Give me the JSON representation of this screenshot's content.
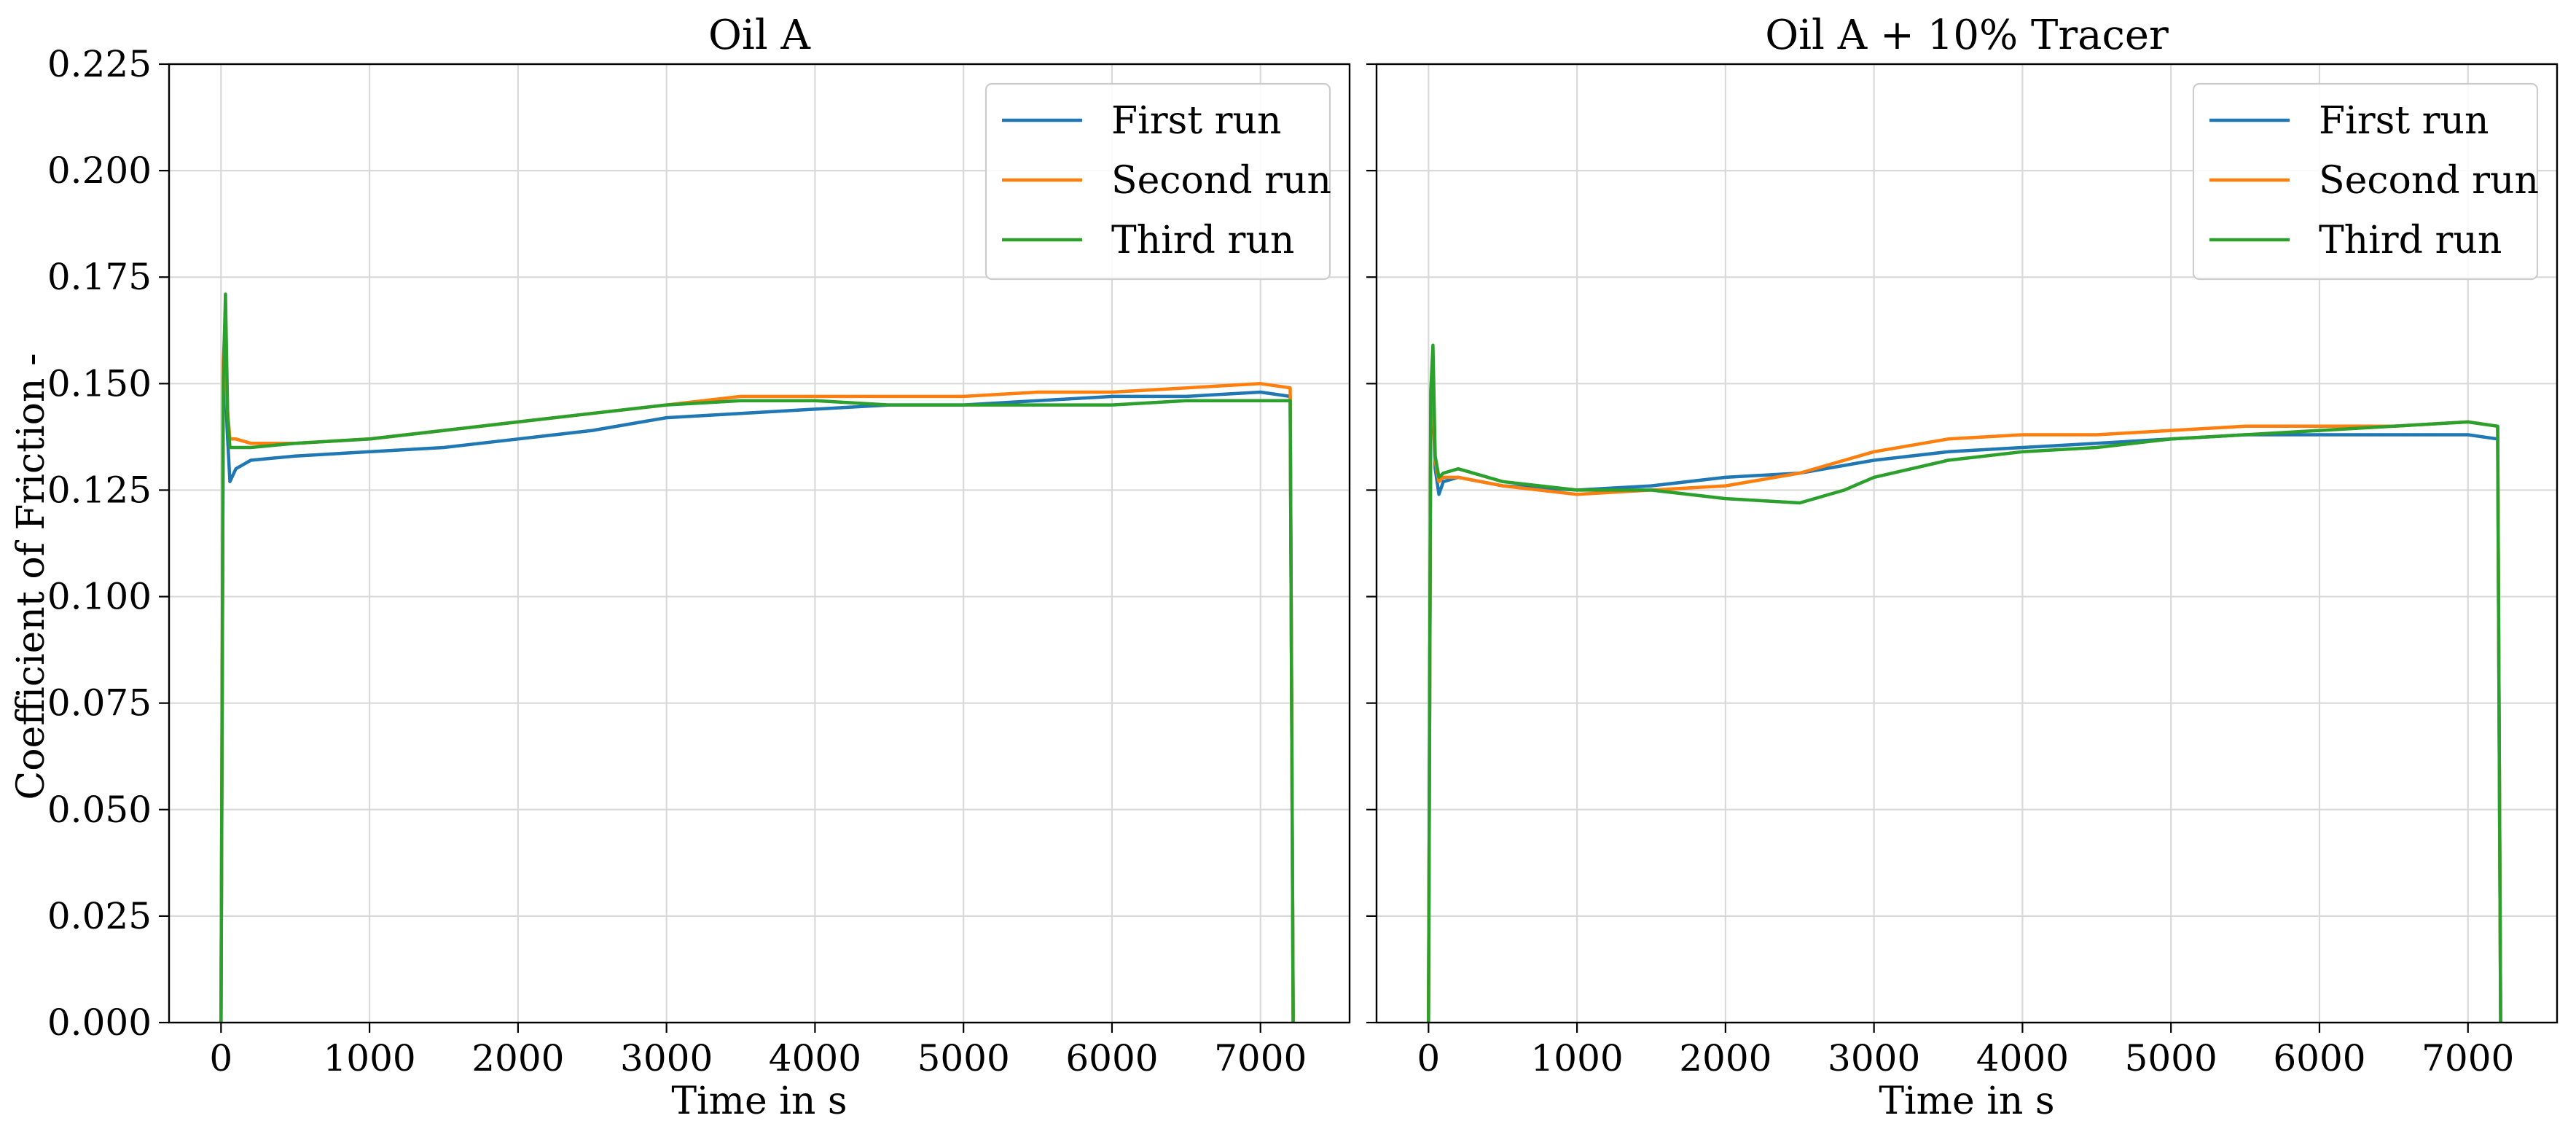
{
  "figure": {
    "ylabel": "Coefficient of Friction -",
    "colors": {
      "first": "#1f77b4",
      "second": "#ff7f0e",
      "third": "#2ca02c"
    }
  },
  "chart_data": [
    {
      "type": "line",
      "title": "Oil A",
      "xlabel": "Time in s",
      "ylabel": "Coefficient of Friction -",
      "xlim": [
        -350,
        7600
      ],
      "ylim": [
        0.0,
        0.225
      ],
      "xticks": [
        0,
        1000,
        2000,
        3000,
        4000,
        5000,
        6000,
        7000
      ],
      "yticks": [
        0.0,
        0.025,
        0.05,
        0.075,
        0.1,
        0.125,
        0.15,
        0.175,
        0.2,
        0.225
      ],
      "grid": true,
      "legend_position": "top-right",
      "series": [
        {
          "name": "First run",
          "color": "#1f77b4",
          "x": [
            0,
            15,
            25,
            40,
            60,
            100,
            200,
            500,
            1000,
            1500,
            2000,
            2500,
            3000,
            3500,
            4000,
            4500,
            5000,
            5500,
            6000,
            6500,
            7000,
            7200,
            7220
          ],
          "y": [
            0.0,
            0.145,
            0.158,
            0.14,
            0.127,
            0.13,
            0.132,
            0.133,
            0.134,
            0.135,
            0.137,
            0.139,
            0.142,
            0.143,
            0.144,
            0.145,
            0.145,
            0.146,
            0.147,
            0.147,
            0.148,
            0.147,
            0.0
          ]
        },
        {
          "name": "Second run",
          "color": "#ff7f0e",
          "x": [
            0,
            15,
            25,
            40,
            60,
            100,
            200,
            500,
            1000,
            1500,
            2000,
            2500,
            3000,
            3500,
            4000,
            4500,
            5000,
            5500,
            6000,
            6500,
            7000,
            7200,
            7220
          ],
          "y": [
            0.0,
            0.155,
            0.163,
            0.145,
            0.137,
            0.137,
            0.136,
            0.136,
            0.137,
            0.139,
            0.141,
            0.143,
            0.145,
            0.147,
            0.147,
            0.147,
            0.147,
            0.148,
            0.148,
            0.149,
            0.15,
            0.149,
            0.0
          ]
        },
        {
          "name": "Third run",
          "color": "#2ca02c",
          "x": [
            0,
            15,
            30,
            45,
            60,
            100,
            200,
            500,
            1000,
            1500,
            2000,
            2500,
            3000,
            3500,
            4000,
            4500,
            5000,
            5500,
            6000,
            6500,
            7000,
            7200,
            7220
          ],
          "y": [
            0.0,
            0.15,
            0.171,
            0.142,
            0.135,
            0.135,
            0.135,
            0.136,
            0.137,
            0.139,
            0.141,
            0.143,
            0.145,
            0.146,
            0.146,
            0.145,
            0.145,
            0.145,
            0.145,
            0.146,
            0.146,
            0.146,
            0.0
          ]
        }
      ]
    },
    {
      "type": "line",
      "title": "Oil A + 10% Tracer",
      "xlabel": "Time in s",
      "ylabel": "",
      "xlim": [
        -350,
        7600
      ],
      "ylim": [
        0.0,
        0.225
      ],
      "xticks": [
        0,
        1000,
        2000,
        3000,
        4000,
        5000,
        6000,
        7000
      ],
      "yticks": [
        0.0,
        0.025,
        0.05,
        0.075,
        0.1,
        0.125,
        0.15,
        0.175,
        0.2,
        0.225
      ],
      "grid": true,
      "legend_position": "top-right",
      "series": [
        {
          "name": "First run",
          "color": "#1f77b4",
          "x": [
            0,
            15,
            25,
            45,
            70,
            100,
            200,
            500,
            1000,
            1500,
            2000,
            2500,
            3000,
            3500,
            4000,
            4500,
            5000,
            5500,
            6000,
            6500,
            7000,
            7200,
            7220
          ],
          "y": [
            0.0,
            0.142,
            0.151,
            0.13,
            0.124,
            0.127,
            0.128,
            0.126,
            0.125,
            0.126,
            0.128,
            0.129,
            0.132,
            0.134,
            0.135,
            0.136,
            0.137,
            0.138,
            0.138,
            0.138,
            0.138,
            0.137,
            0.0
          ]
        },
        {
          "name": "Second run",
          "color": "#ff7f0e",
          "x": [
            0,
            15,
            25,
            45,
            70,
            100,
            200,
            500,
            1000,
            1500,
            2000,
            2500,
            3000,
            3500,
            4000,
            4500,
            5000,
            5500,
            6000,
            6500,
            7000,
            7200,
            7220
          ],
          "y": [
            0.0,
            0.144,
            0.153,
            0.132,
            0.127,
            0.128,
            0.128,
            0.126,
            0.124,
            0.125,
            0.126,
            0.129,
            0.134,
            0.137,
            0.138,
            0.138,
            0.139,
            0.14,
            0.14,
            0.14,
            0.141,
            0.14,
            0.0
          ]
        },
        {
          "name": "Third run",
          "color": "#2ca02c",
          "x": [
            0,
            15,
            30,
            45,
            70,
            100,
            200,
            500,
            1000,
            1500,
            2000,
            2500,
            2800,
            3000,
            3500,
            4000,
            4500,
            5000,
            5500,
            6000,
            6500,
            7000,
            7200,
            7220
          ],
          "y": [
            0.0,
            0.148,
            0.159,
            0.133,
            0.128,
            0.129,
            0.13,
            0.127,
            0.125,
            0.125,
            0.123,
            0.122,
            0.125,
            0.128,
            0.132,
            0.134,
            0.135,
            0.137,
            0.138,
            0.139,
            0.14,
            0.141,
            0.14,
            0.0
          ]
        }
      ]
    }
  ]
}
